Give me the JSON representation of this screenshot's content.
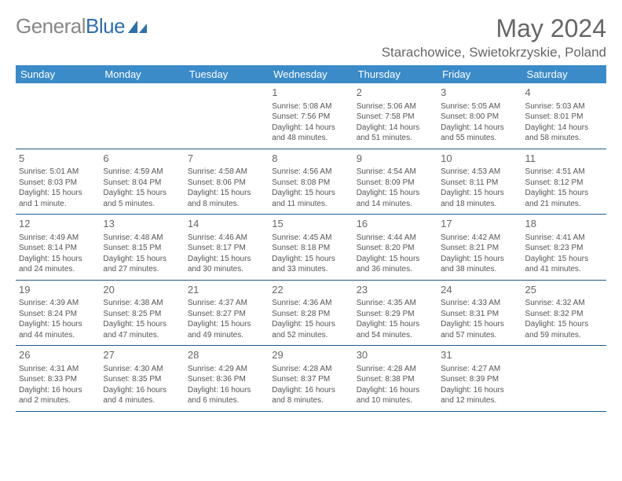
{
  "logo": {
    "text_gray": "General",
    "text_blue": "Blue"
  },
  "header": {
    "month": "May 2024",
    "location": "Starachowice, Swietokrzyskie, Poland"
  },
  "colors": {
    "header_bg": "#3b8bc9",
    "header_text": "#ffffff",
    "cell_border": "#1f5a8a",
    "body_text": "#555555",
    "logo_gray": "#888888",
    "logo_blue": "#2f6fa8"
  },
  "typography": {
    "month_fontsize": 32,
    "location_fontsize": 17,
    "weekday_fontsize": 13,
    "daynum_fontsize": 13,
    "cell_fontsize": 10
  },
  "weekdays": [
    "Sunday",
    "Monday",
    "Tuesday",
    "Wednesday",
    "Thursday",
    "Friday",
    "Saturday"
  ],
  "weeks": [
    [
      null,
      null,
      null,
      {
        "day": "1",
        "sunrise": "5:08 AM",
        "sunset": "7:56 PM",
        "daylight": "14 hours and 48 minutes."
      },
      {
        "day": "2",
        "sunrise": "5:06 AM",
        "sunset": "7:58 PM",
        "daylight": "14 hours and 51 minutes."
      },
      {
        "day": "3",
        "sunrise": "5:05 AM",
        "sunset": "8:00 PM",
        "daylight": "14 hours and 55 minutes."
      },
      {
        "day": "4",
        "sunrise": "5:03 AM",
        "sunset": "8:01 PM",
        "daylight": "14 hours and 58 minutes."
      }
    ],
    [
      {
        "day": "5",
        "sunrise": "5:01 AM",
        "sunset": "8:03 PM",
        "daylight": "15 hours and 1 minute."
      },
      {
        "day": "6",
        "sunrise": "4:59 AM",
        "sunset": "8:04 PM",
        "daylight": "15 hours and 5 minutes."
      },
      {
        "day": "7",
        "sunrise": "4:58 AM",
        "sunset": "8:06 PM",
        "daylight": "15 hours and 8 minutes."
      },
      {
        "day": "8",
        "sunrise": "4:56 AM",
        "sunset": "8:08 PM",
        "daylight": "15 hours and 11 minutes."
      },
      {
        "day": "9",
        "sunrise": "4:54 AM",
        "sunset": "8:09 PM",
        "daylight": "15 hours and 14 minutes."
      },
      {
        "day": "10",
        "sunrise": "4:53 AM",
        "sunset": "8:11 PM",
        "daylight": "15 hours and 18 minutes."
      },
      {
        "day": "11",
        "sunrise": "4:51 AM",
        "sunset": "8:12 PM",
        "daylight": "15 hours and 21 minutes."
      }
    ],
    [
      {
        "day": "12",
        "sunrise": "4:49 AM",
        "sunset": "8:14 PM",
        "daylight": "15 hours and 24 minutes."
      },
      {
        "day": "13",
        "sunrise": "4:48 AM",
        "sunset": "8:15 PM",
        "daylight": "15 hours and 27 minutes."
      },
      {
        "day": "14",
        "sunrise": "4:46 AM",
        "sunset": "8:17 PM",
        "daylight": "15 hours and 30 minutes."
      },
      {
        "day": "15",
        "sunrise": "4:45 AM",
        "sunset": "8:18 PM",
        "daylight": "15 hours and 33 minutes."
      },
      {
        "day": "16",
        "sunrise": "4:44 AM",
        "sunset": "8:20 PM",
        "daylight": "15 hours and 36 minutes."
      },
      {
        "day": "17",
        "sunrise": "4:42 AM",
        "sunset": "8:21 PM",
        "daylight": "15 hours and 38 minutes."
      },
      {
        "day": "18",
        "sunrise": "4:41 AM",
        "sunset": "8:23 PM",
        "daylight": "15 hours and 41 minutes."
      }
    ],
    [
      {
        "day": "19",
        "sunrise": "4:39 AM",
        "sunset": "8:24 PM",
        "daylight": "15 hours and 44 minutes."
      },
      {
        "day": "20",
        "sunrise": "4:38 AM",
        "sunset": "8:25 PM",
        "daylight": "15 hours and 47 minutes."
      },
      {
        "day": "21",
        "sunrise": "4:37 AM",
        "sunset": "8:27 PM",
        "daylight": "15 hours and 49 minutes."
      },
      {
        "day": "22",
        "sunrise": "4:36 AM",
        "sunset": "8:28 PM",
        "daylight": "15 hours and 52 minutes."
      },
      {
        "day": "23",
        "sunrise": "4:35 AM",
        "sunset": "8:29 PM",
        "daylight": "15 hours and 54 minutes."
      },
      {
        "day": "24",
        "sunrise": "4:33 AM",
        "sunset": "8:31 PM",
        "daylight": "15 hours and 57 minutes."
      },
      {
        "day": "25",
        "sunrise": "4:32 AM",
        "sunset": "8:32 PM",
        "daylight": "15 hours and 59 minutes."
      }
    ],
    [
      {
        "day": "26",
        "sunrise": "4:31 AM",
        "sunset": "8:33 PM",
        "daylight": "16 hours and 2 minutes."
      },
      {
        "day": "27",
        "sunrise": "4:30 AM",
        "sunset": "8:35 PM",
        "daylight": "16 hours and 4 minutes."
      },
      {
        "day": "28",
        "sunrise": "4:29 AM",
        "sunset": "8:36 PM",
        "daylight": "16 hours and 6 minutes."
      },
      {
        "day": "29",
        "sunrise": "4:28 AM",
        "sunset": "8:37 PM",
        "daylight": "16 hours and 8 minutes."
      },
      {
        "day": "30",
        "sunrise": "4:28 AM",
        "sunset": "8:38 PM",
        "daylight": "16 hours and 10 minutes."
      },
      {
        "day": "31",
        "sunrise": "4:27 AM",
        "sunset": "8:39 PM",
        "daylight": "16 hours and 12 minutes."
      },
      null
    ]
  ],
  "labels": {
    "sunrise": "Sunrise:",
    "sunset": "Sunset:",
    "daylight": "Daylight:"
  }
}
